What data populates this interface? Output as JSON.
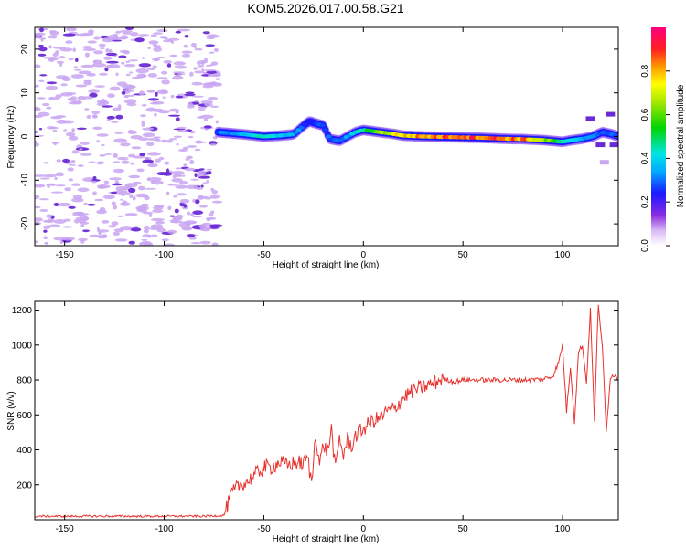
{
  "title": "KOM5.2026.017.00.58.G21",
  "colors": {
    "snr_line": "#e8322e",
    "frame": "#000000",
    "speckle_light": "#c9a6f2",
    "speckle_dark": "#6a2ad6"
  },
  "chart_data": [
    {
      "type": "heatmap",
      "title": "",
      "xlabel": "Height of straight line (km)",
      "ylabel": "Frequency (Hz)",
      "xlim": [
        -165,
        128
      ],
      "ylim": [
        -25,
        25
      ],
      "x_ticks": [
        -150,
        -100,
        -50,
        0,
        50,
        100
      ],
      "y_ticks": [
        -20,
        -10,
        0,
        10,
        20
      ],
      "colorbar": {
        "label": "Normalized spectral amplitude",
        "range": [
          0,
          1
        ],
        "ticks": [
          0.0,
          0.2,
          0.4,
          0.6,
          0.8
        ],
        "colormap": "rainbow (white-violet-blue-cyan-green-yellow-red-magenta)"
      },
      "noise_region": {
        "x_start": -165,
        "x_end": -73,
        "amplitude_range": [
          0.0,
          0.12
        ]
      },
      "signal_trace": {
        "x": [
          -73,
          -60,
          -50,
          -42,
          -35,
          -30,
          -27,
          -24,
          -20,
          -17,
          -12,
          -8,
          -4,
          0,
          5,
          10,
          15,
          20,
          30,
          40,
          50,
          60,
          70,
          80,
          90,
          95,
          100,
          105,
          110,
          115,
          120,
          125,
          128
        ],
        "frequency": [
          1.0,
          0.5,
          0.0,
          0.2,
          0.5,
          2.5,
          3.5,
          3.0,
          2.5,
          -0.5,
          -1.0,
          0.0,
          1.0,
          1.5,
          1.2,
          0.9,
          0.6,
          0.2,
          0.0,
          -0.1,
          -0.2,
          -0.3,
          -0.5,
          -0.6,
          -0.8,
          -1.0,
          -1.2,
          -0.8,
          -0.5,
          0.0,
          1.0,
          0.5,
          0.0
        ],
        "amplitude": [
          0.3,
          0.4,
          0.45,
          0.4,
          0.35,
          0.3,
          0.25,
          0.25,
          0.3,
          0.3,
          0.3,
          0.35,
          0.4,
          0.5,
          0.6,
          0.7,
          0.75,
          0.8,
          0.85,
          0.9,
          0.95,
          0.92,
          0.9,
          0.88,
          0.7,
          0.6,
          0.45,
          0.4,
          0.35,
          0.35,
          0.3,
          0.3,
          0.25
        ]
      }
    },
    {
      "type": "line",
      "title": "",
      "xlabel": "Height of straight line (km)",
      "ylabel": "SNR (v/v)",
      "xlim": [
        -165,
        128
      ],
      "ylim": [
        0,
        1250
      ],
      "x_ticks": [
        -150,
        -100,
        -50,
        0,
        50,
        100
      ],
      "y_ticks": [
        200,
        400,
        600,
        800,
        1000,
        1200
      ],
      "series": [
        {
          "name": "SNR",
          "x": [
            -165,
            -140,
            -120,
            -100,
            -80,
            -70,
            -66,
            -62,
            -58,
            -54,
            -50,
            -46,
            -42,
            -38,
            -34,
            -30,
            -28,
            -26,
            -24,
            -22,
            -20,
            -18,
            -16,
            -14,
            -12,
            -10,
            -8,
            -6,
            -4,
            -2,
            0,
            4,
            8,
            12,
            16,
            20,
            25,
            30,
            35,
            40,
            45,
            50,
            60,
            70,
            80,
            90,
            95,
            98,
            100,
            102,
            104,
            106,
            108,
            110,
            112,
            114,
            116,
            118,
            120,
            122,
            124,
            126,
            128
          ],
          "y": [
            20,
            20,
            20,
            20,
            20,
            25,
            150,
            200,
            220,
            260,
            300,
            300,
            330,
            310,
            330,
            320,
            360,
            200,
            500,
            320,
            430,
            390,
            520,
            280,
            470,
            370,
            460,
            420,
            480,
            500,
            520,
            560,
            580,
            620,
            640,
            700,
            740,
            760,
            780,
            810,
            790,
            800,
            800,
            800,
            800,
            805,
            820,
            900,
            1000,
            620,
            880,
            560,
            960,
            1000,
            780,
            1200,
            560,
            1240,
            980,
            500,
            820,
            830,
            800
          ]
        }
      ]
    }
  ]
}
